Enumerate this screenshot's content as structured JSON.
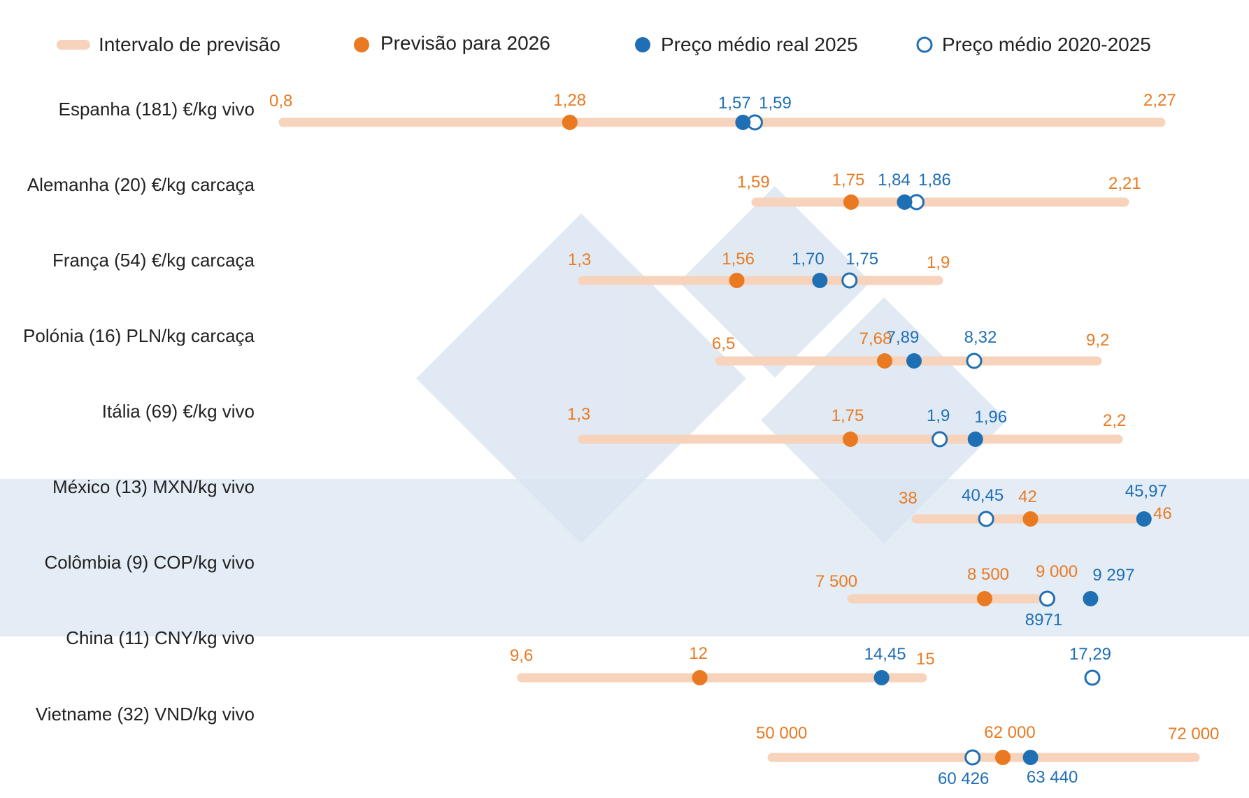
{
  "colors": {
    "range": "#f7d3bc",
    "forecast": "#ea7a22",
    "actual": "#1f6fb5",
    "average": "#1f6fb5",
    "highlight_band": "#e4ecf5",
    "watermark": "#dae5f1"
  },
  "legend": {
    "range_label": "Intervalo de previsão",
    "forecast_label": "Previsão para 2026",
    "actual_label": "Preço médio real 2025",
    "average_label": "Preço médio 2020-2025"
  },
  "chart_data": {
    "type": "dot-range",
    "legend_position": "top",
    "highlighted_rows": [
      "México (13) MXN/kg vivo",
      "Colômbia (9) COP/kg vivo"
    ],
    "rows": [
      {
        "label": "Espanha (181) €/kg vivo",
        "min": 0.8,
        "max": 2.27,
        "forecast": 1.28,
        "actual": 1.57,
        "average": 1.59,
        "min_label": "0,8",
        "max_label": "2,27",
        "forecast_label": "1,28",
        "actual_label": "1,57",
        "average_label": "1,59"
      },
      {
        "label": "Alemanha (20) €/kg carcaça",
        "min": 1.59,
        "max": 2.21,
        "forecast": 1.75,
        "actual": 1.84,
        "average": 1.86,
        "min_label": "1,59",
        "max_label": "2,21",
        "forecast_label": "1,75",
        "actual_label": "1,84",
        "average_label": "1,86"
      },
      {
        "label": "França (54) €/kg carcaça",
        "min": 1.3,
        "max": 1.9,
        "forecast": 1.56,
        "actual": 1.7,
        "average": 1.75,
        "min_label": "1,3",
        "max_label": "1,9",
        "forecast_label": "1,56",
        "actual_label": "1,70",
        "average_label": "1,75"
      },
      {
        "label": "Polónia (16) PLN/kg carcaça",
        "min": 6.5,
        "max": 9.2,
        "forecast": 7.68,
        "actual": 7.89,
        "average": 8.32,
        "min_label": "6,5",
        "max_label": "9,2",
        "forecast_label": "7,68",
        "actual_label": "7,89",
        "average_label": "8,32"
      },
      {
        "label": "Itália (69) €/kg vivo",
        "min": 1.3,
        "max": 2.2,
        "forecast": 1.75,
        "actual": 1.96,
        "average": 1.9,
        "min_label": "1,3",
        "max_label": "2,2",
        "forecast_label": "1,75",
        "actual_label": "1,96",
        "average_label": "1,9"
      },
      {
        "label": "México (13) MXN/kg vivo",
        "min": 38,
        "max": 46,
        "forecast": 42,
        "actual": 45.97,
        "average": 40.45,
        "min_label": "38",
        "max_label": "46",
        "forecast_label": "42",
        "actual_label": "45,97",
        "average_label": "40,45"
      },
      {
        "label": "Colômbia (9) COP/kg vivo",
        "min": 7500,
        "max": 9000,
        "forecast": 8500,
        "actual": 9297,
        "average": 8971,
        "min_label": "7 500",
        "max_label": "9 000",
        "forecast_label": "8 500",
        "actual_label": "9 297",
        "average_label": "8971"
      },
      {
        "label": "China (11) CNY/kg vivo",
        "min": 9.6,
        "max": 15,
        "forecast": 12,
        "actual": 14.45,
        "average": 17.29,
        "min_label": "9,6",
        "max_label": "15",
        "forecast_label": "12",
        "actual_label": "14,45",
        "average_label": "17,29"
      },
      {
        "label": "Vietname (32) VND/kg vivo",
        "min": 50000,
        "max": 72000,
        "forecast": 62000,
        "actual": 63440,
        "average": 60426,
        "min_label": "50 000",
        "max_label": "72 000",
        "forecast_label": "62 000",
        "actual_label": "63 440",
        "average_label": "60 426"
      }
    ]
  }
}
